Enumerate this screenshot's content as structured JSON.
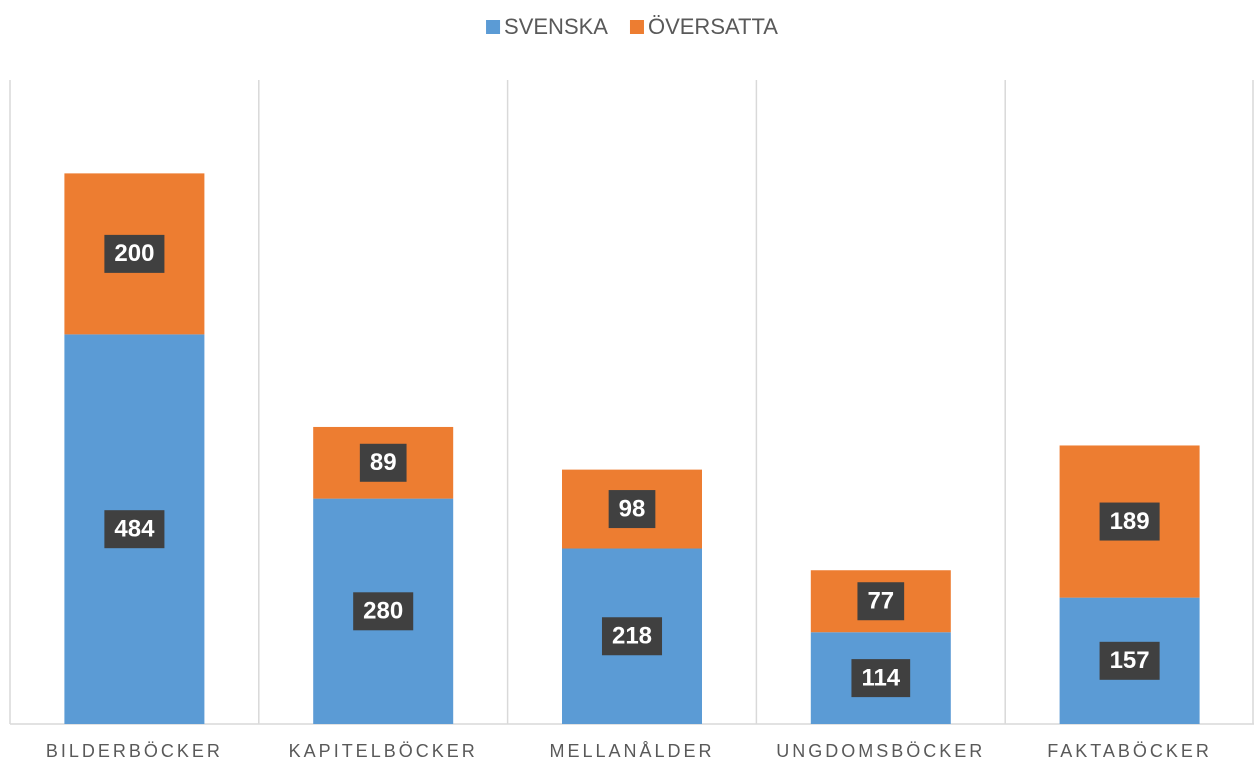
{
  "chart_data": {
    "type": "stacked_bar",
    "categories": [
      "BILDERBÖCKER",
      "KAPITELBÖCKER",
      "MELLANÅLDER",
      "UNGDOMSBÖCKER",
      "FAKTABÖCKER"
    ],
    "series": [
      {
        "name": "SVENSKA",
        "color": "#5b9bd5",
        "values": [
          484,
          280,
          218,
          114,
          157
        ]
      },
      {
        "name": "ÖVERSATTA",
        "color": "#ed7d31",
        "values": [
          200,
          89,
          98,
          77,
          189
        ]
      }
    ],
    "ylim": [
      0,
      800
    ],
    "legend": "top"
  }
}
